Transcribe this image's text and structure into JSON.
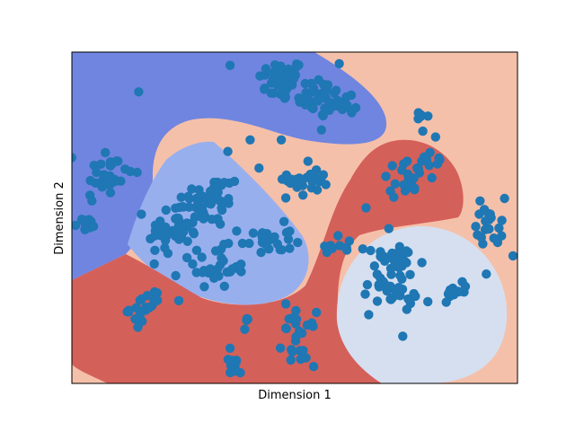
{
  "chart_data": {
    "type": "scatter",
    "subtype": "decision-boundary-scatter",
    "title": "",
    "xlabel": "Dimension 1",
    "ylabel": "Dimension 2",
    "xlim": [
      0,
      100
    ],
    "ylim": [
      0,
      100
    ],
    "ticks_shown": false,
    "grid": false,
    "colors": {
      "point": "#1f77b4",
      "region_dark_blue": "#7085e0",
      "region_light_blue": "#98afee",
      "region_peach": "#f5c0a9",
      "region_red": "#d4605a",
      "region_pale_blue": "#d6dff0"
    },
    "clusters": [
      {
        "cx": 47.0,
        "cy": 91.5,
        "sx": 2.6,
        "sy": 3.2,
        "n": 45
      },
      {
        "cx": 55.7,
        "cy": 86.2,
        "sx": 2.5,
        "sy": 3.2,
        "n": 32
      },
      {
        "cx": 61.5,
        "cy": 84.5,
        "sx": 1.8,
        "sy": 1.6,
        "n": 10
      },
      {
        "cx": 7.7,
        "cy": 63.0,
        "sx": 3.0,
        "sy": 4.5,
        "n": 30
      },
      {
        "cx": 3.0,
        "cy": 48.0,
        "sx": 1.5,
        "sy": 2.0,
        "n": 10
      },
      {
        "cx": 31.0,
        "cy": 55.0,
        "sx": 3.0,
        "sy": 4.0,
        "n": 45
      },
      {
        "cx": 23.5,
        "cy": 46.5,
        "sx": 3.2,
        "sy": 4.5,
        "n": 45
      },
      {
        "cx": 32.0,
        "cy": 35.0,
        "sx": 3.5,
        "sy": 3.0,
        "n": 30
      },
      {
        "cx": 43.5,
        "cy": 43.0,
        "sx": 3.0,
        "sy": 2.5,
        "n": 25
      },
      {
        "cx": 53.5,
        "cy": 61.5,
        "sx": 2.5,
        "sy": 3.0,
        "n": 25
      },
      {
        "cx": 74.5,
        "cy": 62.0,
        "sx": 3.0,
        "sy": 2.5,
        "n": 20
      },
      {
        "cx": 80.5,
        "cy": 68.0,
        "sx": 2.0,
        "sy": 4.5,
        "n": 12
      },
      {
        "cx": 94.0,
        "cy": 49.0,
        "sx": 1.6,
        "sy": 3.5,
        "n": 20
      },
      {
        "cx": 71.5,
        "cy": 31.5,
        "sx": 3.0,
        "sy": 6.0,
        "n": 60
      },
      {
        "cx": 85.5,
        "cy": 28.0,
        "sx": 1.8,
        "sy": 1.5,
        "n": 12
      },
      {
        "cx": 16.5,
        "cy": 22.5,
        "sx": 1.8,
        "sy": 2.2,
        "n": 20
      },
      {
        "cx": 51.0,
        "cy": 13.5,
        "sx": 1.8,
        "sy": 4.0,
        "n": 25
      },
      {
        "cx": 36.5,
        "cy": 6.0,
        "sx": 1.5,
        "sy": 2.5,
        "n": 12
      },
      {
        "cx": 60.0,
        "cy": 41.0,
        "sx": 3.0,
        "sy": 1.8,
        "n": 10
      },
      {
        "cx": 39.0,
        "cy": 18.0,
        "sx": 0.8,
        "sy": 1.0,
        "n": 4
      },
      {
        "cx": 79.0,
        "cy": 80.0,
        "sx": 1.2,
        "sy": 1.2,
        "n": 5
      }
    ],
    "extra_points": [
      [
        35,
        70
      ],
      [
        40,
        73.5
      ],
      [
        47,
        73.5
      ],
      [
        42,
        65
      ],
      [
        36.5,
        61
      ],
      [
        48,
        56
      ],
      [
        57,
        60
      ],
      [
        66,
        53
      ],
      [
        15,
        88
      ],
      [
        35.5,
        96
      ],
      [
        60,
        96.5
      ],
      [
        93,
        33
      ],
      [
        99,
        38.5
      ],
      [
        48,
        24
      ],
      [
        34,
        37
      ],
      [
        24,
        25
      ],
      [
        56,
        76.5
      ]
    ]
  }
}
